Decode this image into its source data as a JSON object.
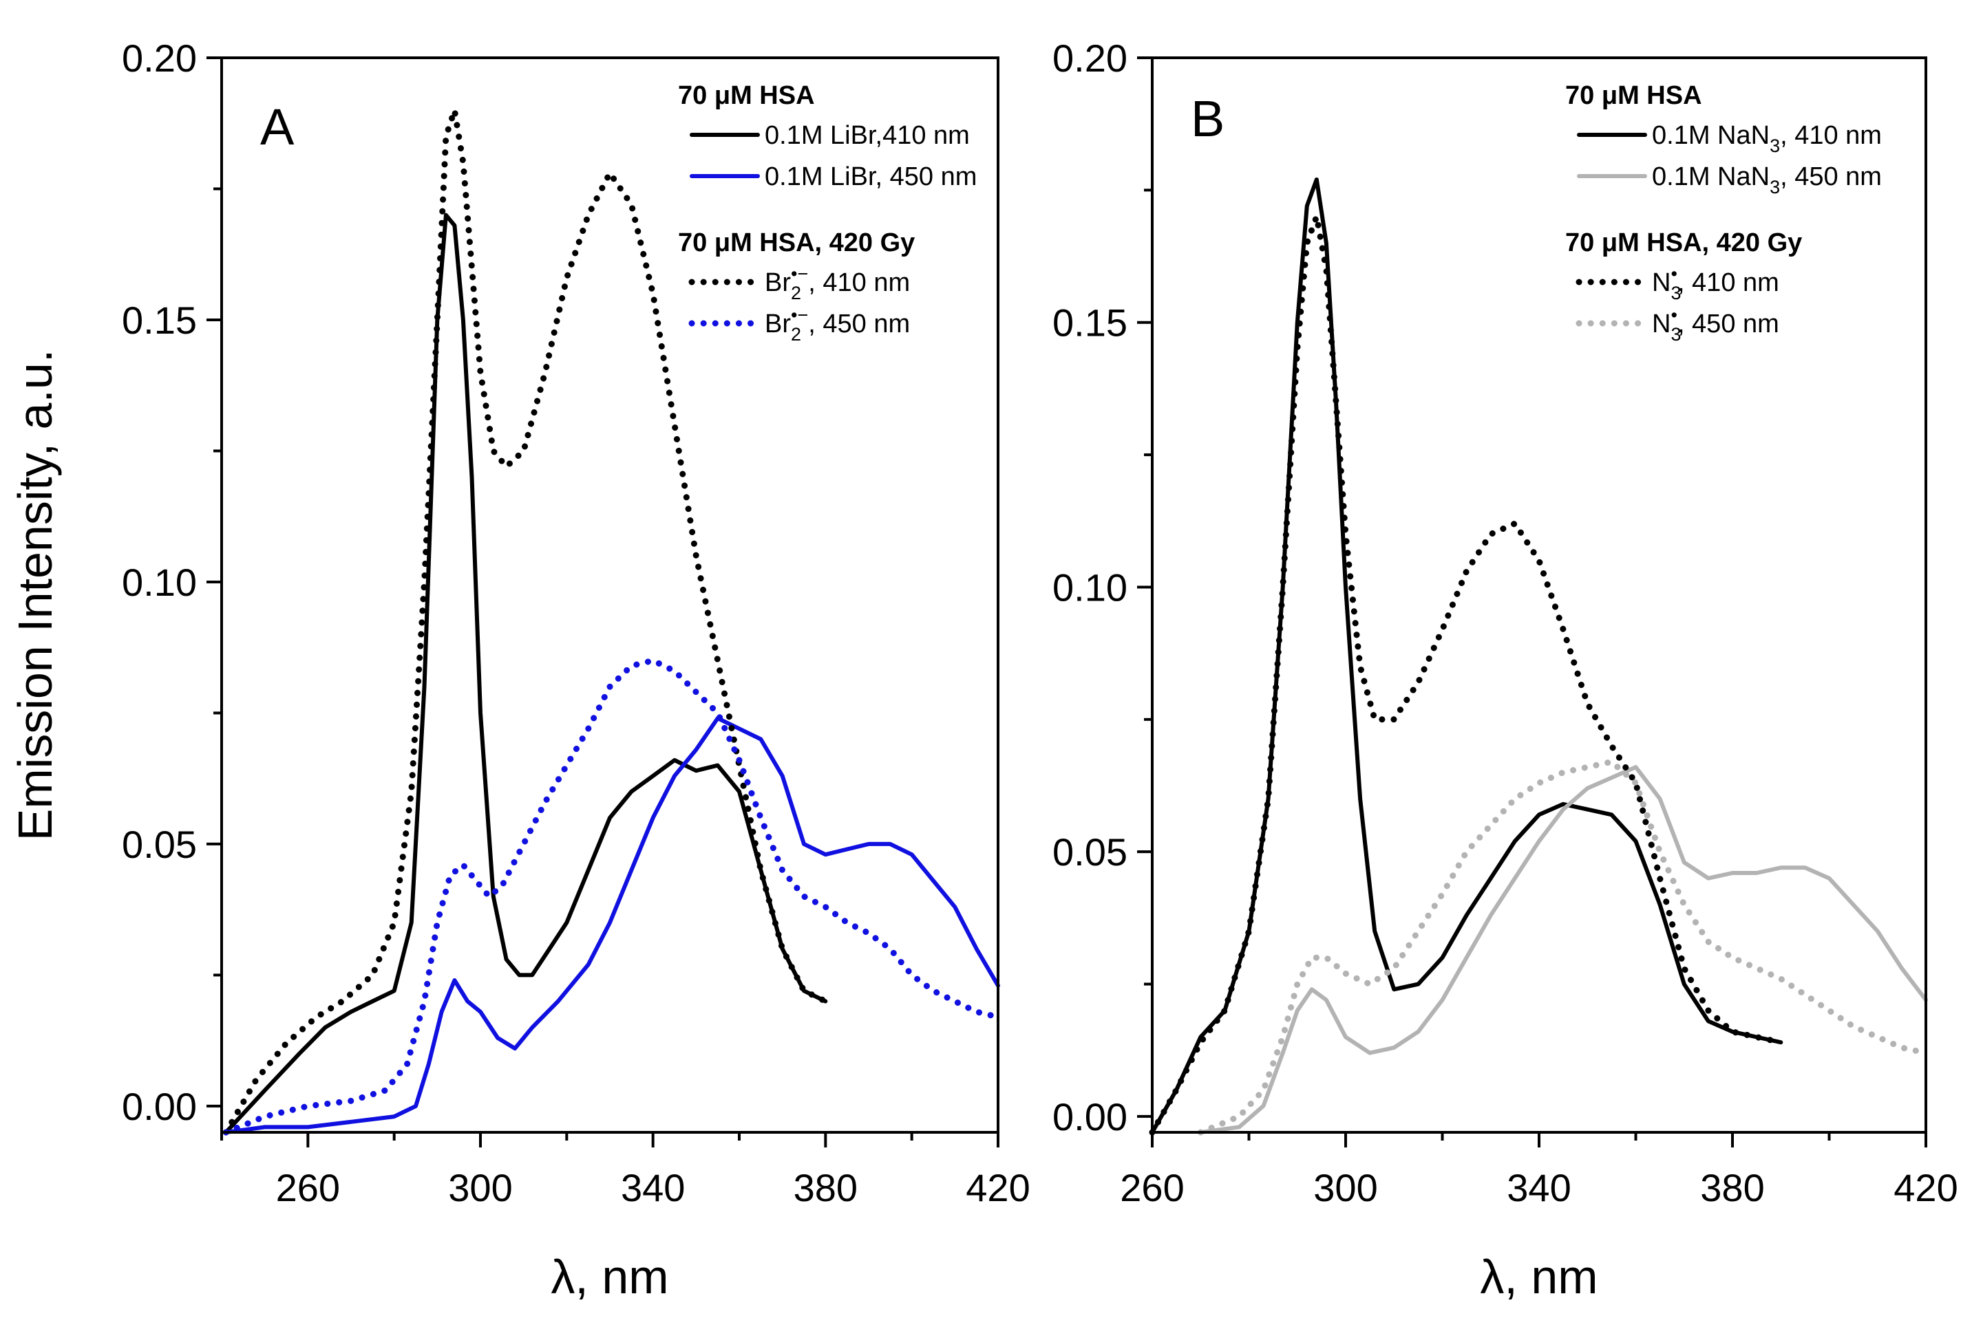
{
  "chart_data": [
    {
      "panel": "A",
      "type": "line",
      "xlabel": "λ, nm",
      "ylabel": "Emission Intensity, a.u.",
      "xlim": [
        240,
        420
      ],
      "ylim": [
        -0.005,
        0.2
      ],
      "xticks": [
        260,
        300,
        340,
        380,
        420
      ],
      "yticks": [
        0.0,
        0.05,
        0.1,
        0.15,
        0.2
      ],
      "xtick_labels": [
        "260",
        "300",
        "340",
        "380",
        "420"
      ],
      "ytick_labels": [
        "0.00",
        "0.05",
        "0.10",
        "0.15",
        "0.20"
      ],
      "legend": [
        {
          "heading": "70 μM HSA"
        },
        {
          "series": 0,
          "label": "0.1M LiBr,410 nm"
        },
        {
          "series": 1,
          "label": "0.1M LiBr, 450 nm"
        },
        {
          "heading": "70 μM HSA, 420 Gy"
        },
        {
          "series": 2,
          "label_parts": [
            "Br",
            "2",
            "•−",
            ", 410 nm"
          ]
        },
        {
          "series": 3,
          "label_parts": [
            "Br",
            "2",
            "•−",
            ", 450 nm"
          ]
        }
      ],
      "series": [
        {
          "name": "0.1M LiBr, 410 nm",
          "color": "#000000",
          "style": "solid",
          "x": [
            241,
            250,
            258,
            264,
            270,
            275,
            280,
            284,
            287,
            290,
            292,
            294,
            296,
            298,
            300,
            303,
            306,
            309,
            312,
            316,
            320,
            325,
            330,
            335,
            340,
            345,
            350,
            355,
            360,
            365,
            370,
            375,
            380
          ],
          "y": [
            -0.005,
            0.003,
            0.01,
            0.015,
            0.018,
            0.02,
            0.022,
            0.035,
            0.08,
            0.15,
            0.17,
            0.168,
            0.15,
            0.12,
            0.075,
            0.04,
            0.028,
            0.025,
            0.025,
            0.03,
            0.035,
            0.045,
            0.055,
            0.06,
            0.063,
            0.066,
            0.064,
            0.065,
            0.06,
            0.045,
            0.03,
            0.022,
            0.02
          ]
        },
        {
          "name": "0.1M LiBr, 450 nm",
          "color": "#1010e0",
          "style": "solid",
          "x": [
            241,
            250,
            260,
            270,
            280,
            285,
            288,
            291,
            294,
            297,
            300,
            304,
            308,
            312,
            318,
            325,
            330,
            335,
            340,
            345,
            350,
            355,
            360,
            365,
            370,
            375,
            380,
            385,
            390,
            395,
            400,
            405,
            410,
            415,
            420
          ],
          "y": [
            -0.005,
            -0.004,
            -0.004,
            -0.003,
            -0.002,
            0.0,
            0.008,
            0.018,
            0.024,
            0.02,
            0.018,
            0.013,
            0.011,
            0.015,
            0.02,
            0.027,
            0.035,
            0.045,
            0.055,
            0.063,
            0.068,
            0.074,
            0.072,
            0.07,
            0.063,
            0.05,
            0.048,
            0.049,
            0.05,
            0.05,
            0.048,
            0.043,
            0.038,
            0.03,
            0.023
          ]
        },
        {
          "name": "Br2•−, 410 nm",
          "color": "#000000",
          "style": "dotted",
          "x": [
            241,
            248,
            255,
            262,
            268,
            275,
            280,
            284,
            287,
            290,
            292,
            294,
            296,
            298,
            300,
            303,
            306,
            310,
            315,
            320,
            325,
            330,
            335,
            340,
            345,
            350,
            355,
            360,
            365,
            370,
            375,
            380
          ],
          "y": [
            -0.005,
            0.005,
            0.012,
            0.017,
            0.02,
            0.025,
            0.035,
            0.06,
            0.1,
            0.15,
            0.185,
            0.19,
            0.18,
            0.16,
            0.14,
            0.125,
            0.122,
            0.125,
            0.14,
            0.158,
            0.17,
            0.178,
            0.172,
            0.155,
            0.13,
            0.105,
            0.085,
            0.065,
            0.045,
            0.03,
            0.022,
            0.02
          ]
        },
        {
          "name": "Br2•−, 450 nm",
          "color": "#1010e0",
          "style": "dotted",
          "x": [
            241,
            250,
            260,
            270,
            278,
            283,
            287,
            290,
            293,
            296,
            299,
            302,
            305,
            310,
            315,
            320,
            325,
            330,
            335,
            340,
            345,
            350,
            355,
            360,
            365,
            370,
            375,
            380,
            385,
            390,
            395,
            400,
            405,
            410,
            415,
            420
          ],
          "y": [
            -0.005,
            -0.002,
            0.0,
            0.001,
            0.003,
            0.008,
            0.02,
            0.035,
            0.044,
            0.046,
            0.043,
            0.04,
            0.042,
            0.05,
            0.058,
            0.065,
            0.072,
            0.08,
            0.084,
            0.085,
            0.083,
            0.079,
            0.075,
            0.066,
            0.055,
            0.045,
            0.04,
            0.038,
            0.035,
            0.033,
            0.03,
            0.025,
            0.022,
            0.02,
            0.018,
            0.017
          ]
        }
      ]
    },
    {
      "panel": "B",
      "type": "line",
      "xlabel": "λ, nm",
      "ylabel": "",
      "xlim": [
        260,
        420
      ],
      "ylim": [
        -0.003,
        0.2
      ],
      "xticks": [
        260,
        300,
        340,
        380,
        420
      ],
      "yticks": [
        0.0,
        0.05,
        0.1,
        0.15,
        0.2
      ],
      "xtick_labels": [
        "260",
        "300",
        "340",
        "380",
        "420"
      ],
      "ytick_labels": [
        "0.00",
        "0.05",
        "0.10",
        "0.15",
        "0.20"
      ],
      "legend": [
        {
          "heading": "70 μM HSA"
        },
        {
          "series": 0,
          "label_parts": [
            "0.1M NaN",
            "3",
            "",
            ", 410 nm"
          ]
        },
        {
          "series": 1,
          "label_parts": [
            "0.1M NaN",
            "3",
            "",
            ", 450 nm"
          ]
        },
        {
          "heading": "70 μM HSA, 420 Gy"
        },
        {
          "series": 2,
          "label_parts": [
            "N",
            "3",
            "•",
            ", 410 nm"
          ]
        },
        {
          "series": 3,
          "label_parts": [
            "N",
            "3",
            "•",
            ", 450 nm"
          ]
        }
      ],
      "series": [
        {
          "name": "0.1M NaN3, 410 nm",
          "color": "#000000",
          "style": "solid",
          "x": [
            260,
            265,
            270,
            275,
            280,
            284,
            287,
            290,
            292,
            294,
            296,
            298,
            300,
            303,
            306,
            310,
            315,
            320,
            325,
            330,
            335,
            340,
            345,
            350,
            355,
            360,
            365,
            370,
            375,
            380,
            385,
            390
          ],
          "y": [
            -0.003,
            0.005,
            0.015,
            0.02,
            0.035,
            0.06,
            0.1,
            0.15,
            0.172,
            0.177,
            0.165,
            0.135,
            0.1,
            0.06,
            0.035,
            0.024,
            0.025,
            0.03,
            0.038,
            0.045,
            0.052,
            0.057,
            0.059,
            0.058,
            0.057,
            0.052,
            0.04,
            0.025,
            0.018,
            0.016,
            0.015,
            0.014
          ]
        },
        {
          "name": "0.1M NaN3, 450 nm",
          "color": "#b3b3b3",
          "style": "solid",
          "x": [
            270,
            278,
            283,
            287,
            290,
            293,
            296,
            300,
            305,
            310,
            315,
            320,
            325,
            330,
            335,
            340,
            345,
            350,
            355,
            360,
            365,
            370,
            375,
            380,
            385,
            390,
            395,
            400,
            405,
            410,
            415,
            420
          ],
          "y": [
            -0.003,
            -0.002,
            0.002,
            0.012,
            0.02,
            0.024,
            0.022,
            0.015,
            0.012,
            0.013,
            0.016,
            0.022,
            0.03,
            0.038,
            0.045,
            0.052,
            0.058,
            0.062,
            0.064,
            0.066,
            0.06,
            0.048,
            0.045,
            0.046,
            0.046,
            0.047,
            0.047,
            0.045,
            0.04,
            0.035,
            0.028,
            0.022
          ]
        },
        {
          "name": "N3•, 410 nm",
          "color": "#000000",
          "style": "dotted",
          "x": [
            260,
            265,
            270,
            275,
            280,
            284,
            287,
            290,
            292,
            294,
            296,
            298,
            300,
            303,
            306,
            310,
            315,
            320,
            325,
            330,
            335,
            340,
            345,
            350,
            355,
            360,
            365,
            370,
            375,
            380,
            385,
            390
          ],
          "y": [
            -0.003,
            0.005,
            0.014,
            0.02,
            0.035,
            0.06,
            0.1,
            0.145,
            0.165,
            0.17,
            0.16,
            0.135,
            0.11,
            0.085,
            0.075,
            0.075,
            0.082,
            0.092,
            0.103,
            0.11,
            0.112,
            0.105,
            0.092,
            0.078,
            0.07,
            0.063,
            0.045,
            0.028,
            0.02,
            0.016,
            0.015,
            0.014
          ]
        },
        {
          "name": "N3•, 450 nm",
          "color": "#b3b3b3",
          "style": "dotted",
          "x": [
            270,
            278,
            283,
            287,
            290,
            293,
            296,
            300,
            305,
            310,
            315,
            320,
            325,
            330,
            335,
            340,
            345,
            350,
            355,
            360,
            365,
            370,
            375,
            380,
            385,
            390,
            395,
            400,
            405,
            410,
            415,
            420
          ],
          "y": [
            -0.003,
            0.0,
            0.005,
            0.015,
            0.025,
            0.03,
            0.03,
            0.027,
            0.025,
            0.028,
            0.035,
            0.042,
            0.05,
            0.055,
            0.06,
            0.063,
            0.065,
            0.066,
            0.067,
            0.063,
            0.05,
            0.04,
            0.033,
            0.03,
            0.028,
            0.026,
            0.023,
            0.02,
            0.017,
            0.015,
            0.013,
            0.012
          ]
        }
      ]
    }
  ]
}
